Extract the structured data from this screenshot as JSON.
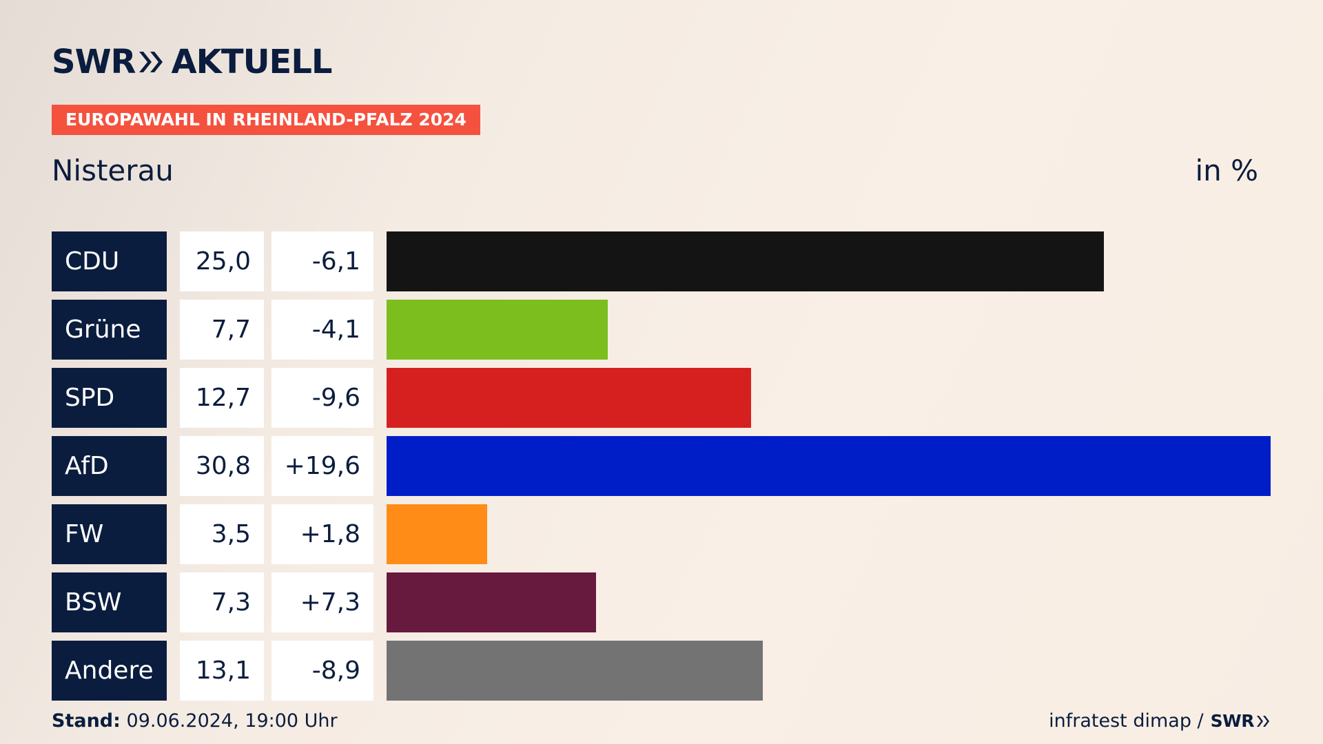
{
  "logo": {
    "swr": "SWR",
    "aktuell": "AKTUELL"
  },
  "badge": "EUROPAWAHL IN RHEINLAND-PFALZ 2024",
  "region": "Nisterau",
  "unit": "in %",
  "chart_data": {
    "type": "bar",
    "orientation": "horizontal",
    "title": "Nisterau",
    "unit": "in %",
    "categories": [
      "CDU",
      "Grüne",
      "SPD",
      "AfD",
      "FW",
      "BSW",
      "Andere"
    ],
    "values": [
      25.0,
      7.7,
      12.7,
      30.8,
      3.5,
      7.3,
      13.1
    ],
    "value_labels": [
      "25,0",
      "7,7",
      "12,7",
      "30,8",
      "3,5",
      "7,3",
      "13,1"
    ],
    "diff_labels": [
      "-6,1",
      "-4,1",
      "-9,6",
      "+19,6",
      "+1,8",
      "+7,3",
      "-8,9"
    ],
    "colors": [
      "#141414",
      "#7bbe1e",
      "#d62020",
      "#001ec8",
      "#ff8c17",
      "#671a3e",
      "#737373"
    ],
    "xlim": [
      0,
      30.8
    ]
  },
  "footer": {
    "stand_label": "Stand:",
    "stand_value": "09.06.2024, 19:00 Uhr",
    "source": "infratest dimap /",
    "source_logo": "SWR"
  }
}
